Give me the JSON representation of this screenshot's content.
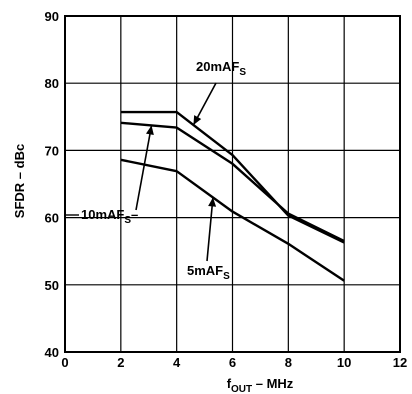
{
  "chart_data": {
    "type": "line",
    "title": "",
    "xlabel": "f",
    "xlabel_sub": "OUT",
    "xlabel_rest": " – MHz",
    "ylabel": "SFDR – dBc",
    "xlim": [
      0,
      12
    ],
    "ylim": [
      40,
      90
    ],
    "x_ticks": [
      0,
      2,
      4,
      6,
      8,
      10,
      12
    ],
    "y_ticks": [
      40,
      50,
      60,
      70,
      80,
      90
    ],
    "grid": true,
    "series": [
      {
        "name": "20mAF",
        "name_sub": "S",
        "x": [
          2,
          4,
          6,
          8,
          10
        ],
        "values": [
          75.7,
          75.7,
          69.3,
          60.3,
          56.3
        ]
      },
      {
        "name": "10mAF",
        "name_sub": "S",
        "x": [
          2,
          4,
          6,
          8,
          10
        ],
        "values": [
          74.1,
          73.4,
          68.0,
          60.6,
          56.5
        ]
      },
      {
        "name": "5mAF",
        "name_sub": "S",
        "x": [
          2,
          4,
          6,
          8,
          10
        ],
        "values": [
          68.6,
          66.9,
          60.9,
          56.1,
          50.6
        ]
      }
    ]
  }
}
